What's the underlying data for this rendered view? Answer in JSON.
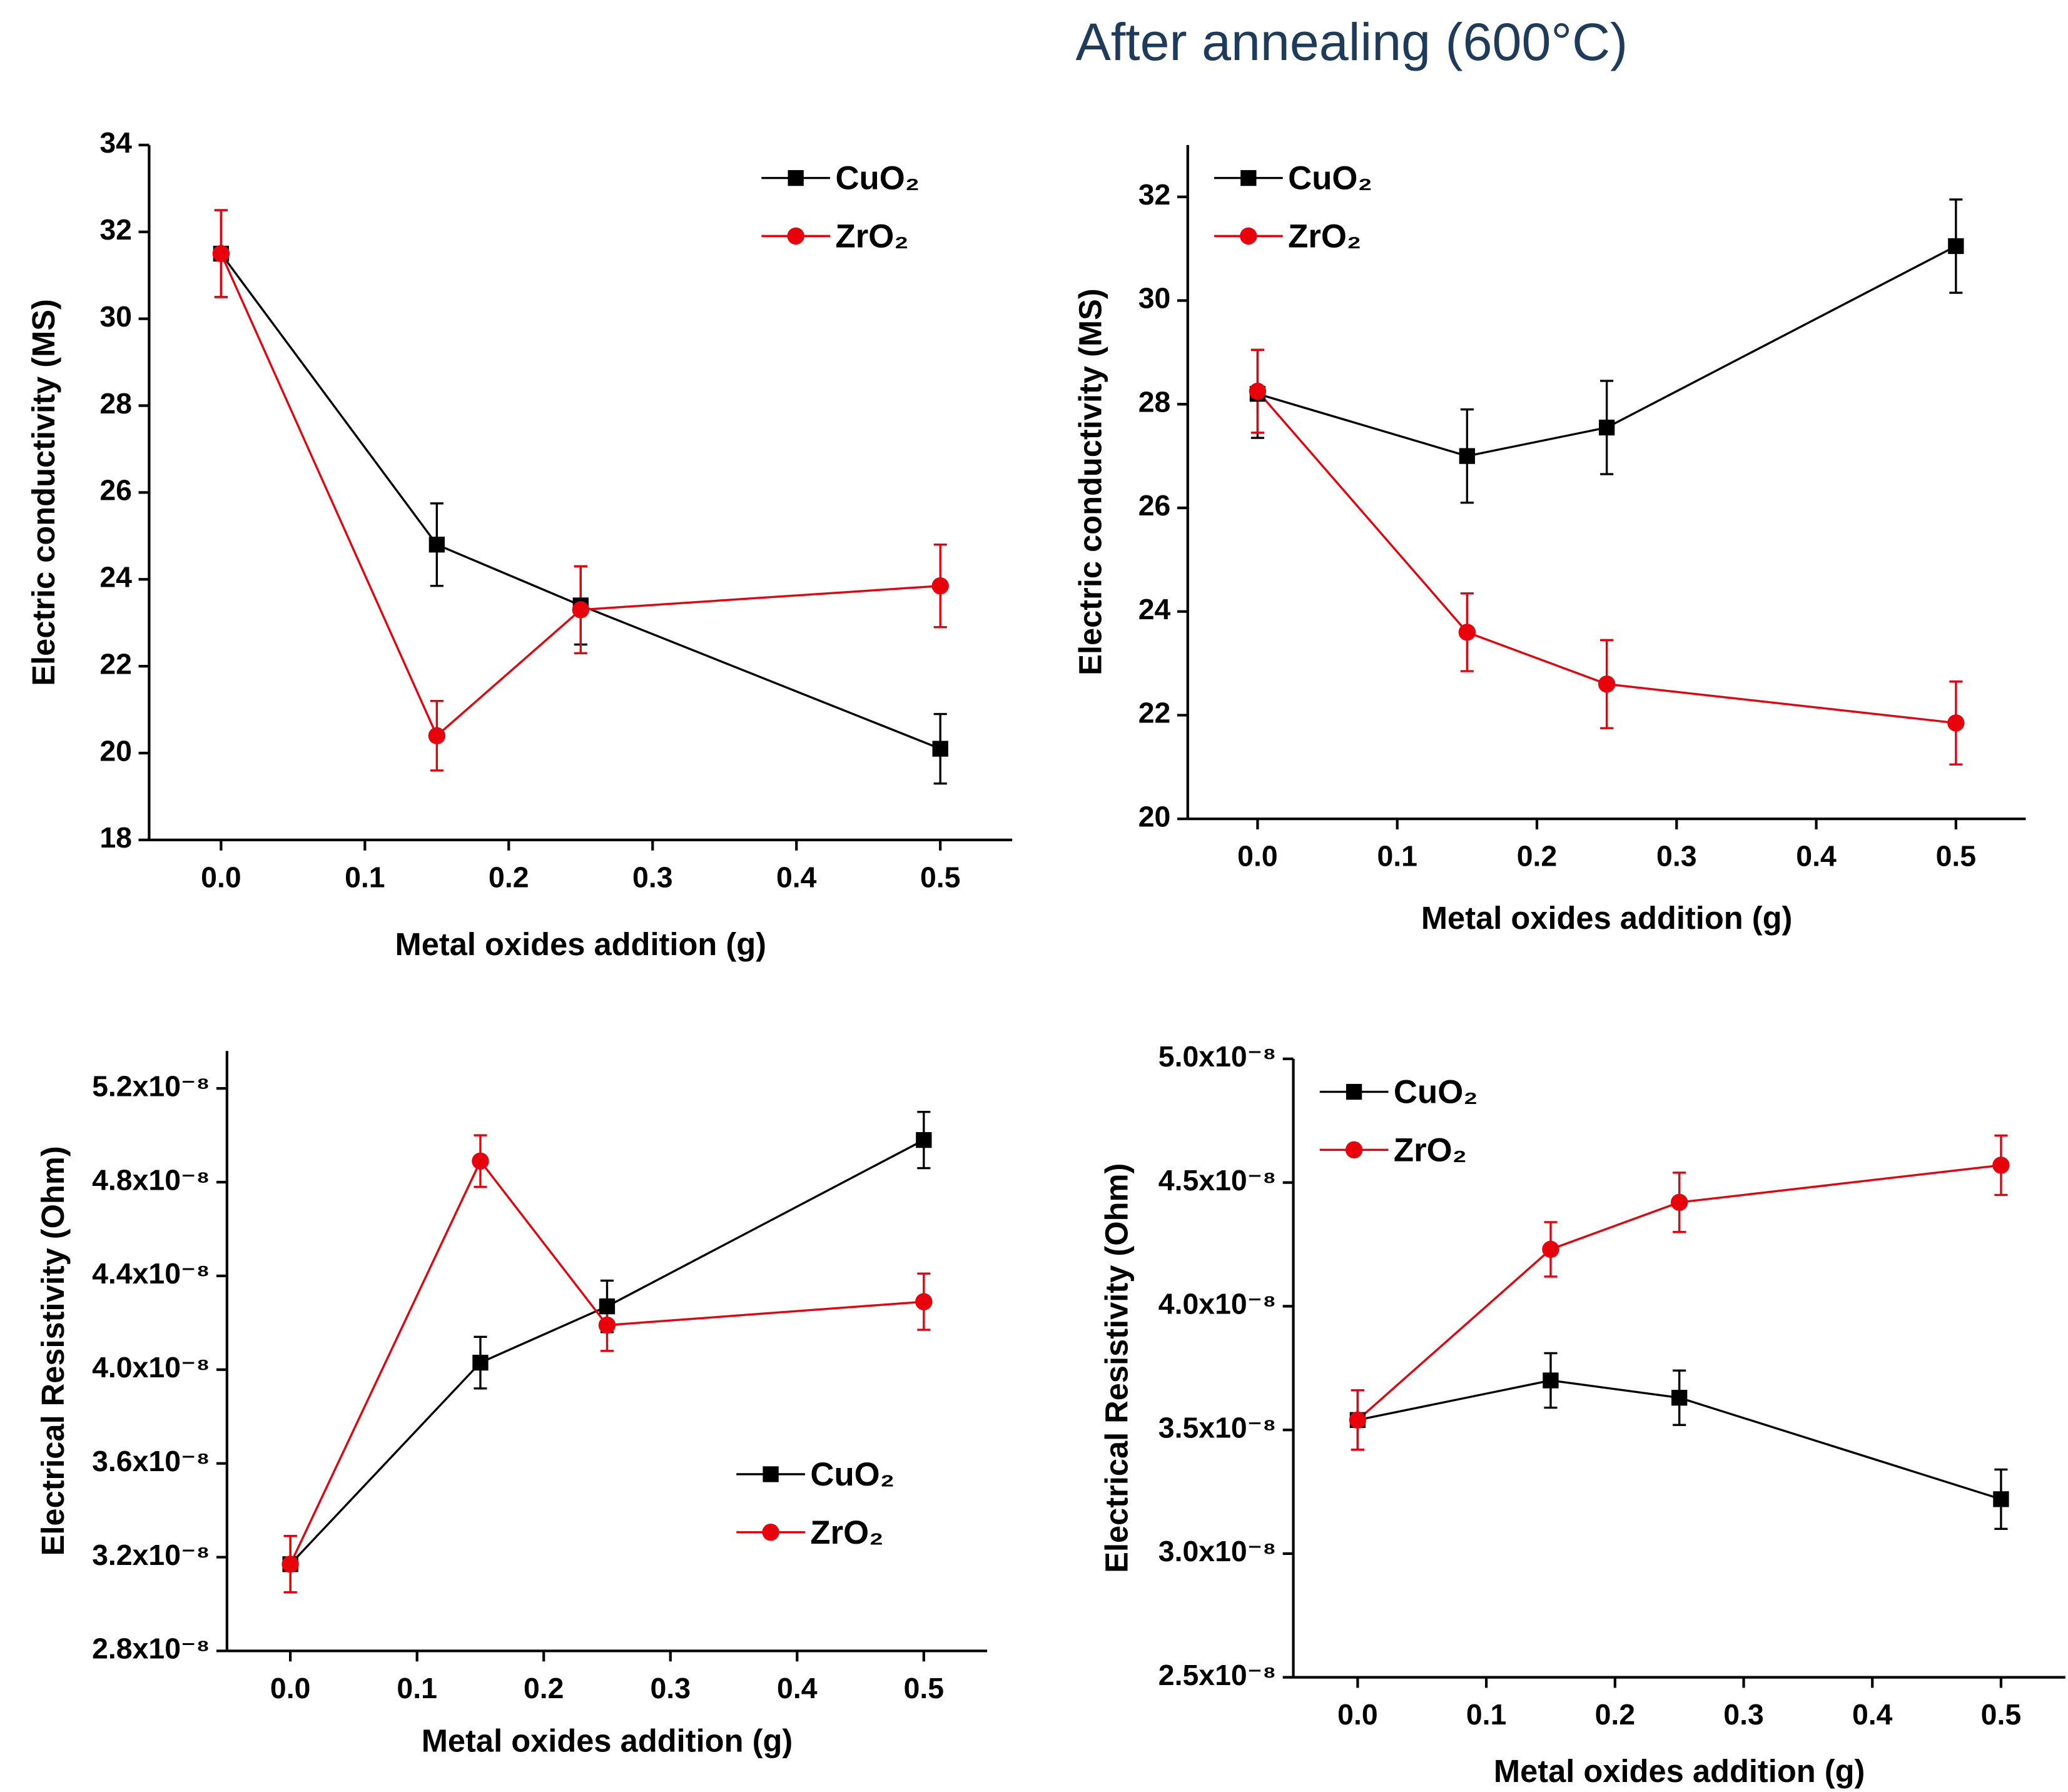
{
  "page_title": "After annealing (600°C)",
  "chart_data": [
    {
      "type": "line",
      "x_label": "Metal oxides addition (g)",
      "y_label": "Electric conductivity (MS)",
      "x": [
        0,
        0.15,
        0.25,
        0.5
      ],
      "xlim": [
        -0.05,
        0.55
      ],
      "xticks": [
        {
          "value": 0,
          "label": "0.0"
        },
        0.1,
        0.2,
        0.3,
        0.4,
        0.5
      ],
      "ylim": [
        18,
        34
      ],
      "yticks": [
        18,
        20,
        22,
        24,
        26,
        28,
        30,
        32,
        34
      ],
      "legend": "upper right",
      "series": [
        {
          "name": "CuO₂",
          "color": "#000000",
          "marker": "square",
          "values": [
            31.5,
            24.8,
            23.4,
            20.1
          ],
          "errors": [
            1.0,
            0.95,
            0.9,
            0.8
          ]
        },
        {
          "name": "ZrO₂",
          "color": "#e8000b",
          "marker": "circle",
          "values": [
            31.5,
            20.4,
            23.3,
            23.85
          ],
          "errors": [
            1.0,
            0.8,
            1.0,
            0.95
          ]
        }
      ]
    },
    {
      "type": "line",
      "x_label": "Metal oxides addition (g)",
      "y_label": "Electric conductivity (MS)",
      "x": [
        0,
        0.15,
        0.25,
        0.5
      ],
      "xlim": [
        -0.05,
        0.55
      ],
      "xticks": [
        {
          "value": 0,
          "label": "0.0"
        },
        0.1,
        0.2,
        0.3,
        0.4,
        0.5
      ],
      "ylim": [
        20,
        33
      ],
      "yticks": [
        20,
        22,
        24,
        26,
        28,
        30,
        32
      ],
      "legend": "upper left",
      "series": [
        {
          "name": "CuO₂",
          "color": "#000000",
          "marker": "square",
          "values": [
            28.2,
            27.0,
            27.55,
            31.05
          ],
          "errors": [
            0.85,
            0.9,
            0.9,
            0.9
          ]
        },
        {
          "name": "ZrO₂",
          "color": "#e8000b",
          "marker": "circle",
          "values": [
            28.25,
            23.6,
            22.6,
            21.85
          ],
          "errors": [
            0.8,
            0.75,
            0.85,
            0.8
          ]
        }
      ]
    },
    {
      "type": "line",
      "x_label": "Metal oxides addition (g)",
      "y_label": "Electrical Resistivity (Ohm)",
      "x": [
        0,
        0.15,
        0.25,
        0.5
      ],
      "xlim": [
        -0.05,
        0.55
      ],
      "xticks": [
        {
          "value": 0,
          "label": "0.0"
        },
        0.1,
        0.2,
        0.3,
        0.4,
        0.5
      ],
      "ylim": [
        2.8e-08,
        5.36e-08
      ],
      "yticks": [
        {
          "value": 2.8e-08,
          "label": "2.8x10⁻⁸"
        },
        {
          "value": 3.2e-08,
          "label": "3.2x10⁻⁸"
        },
        {
          "value": 3.6e-08,
          "label": "3.6x10⁻⁸"
        },
        {
          "value": 4e-08,
          "label": "4.0x10⁻⁸"
        },
        {
          "value": 4.4e-08,
          "label": "4.4x10⁻⁸"
        },
        {
          "value": 4.8e-08,
          "label": "4.8x10⁻⁸"
        },
        {
          "value": 5.2e-08,
          "label": "5.2x10⁻⁸"
        }
      ],
      "legend": "lower right",
      "series": [
        {
          "name": "CuO₂",
          "color": "#000000",
          "marker": "square",
          "values": [
            3.17e-08,
            4.03e-08,
            4.27e-08,
            4.98e-08
          ],
          "errors": [
            1.2e-09,
            1.1e-09,
            1.1e-09,
            1.2e-09
          ]
        },
        {
          "name": "ZrO₂",
          "color": "#e8000b",
          "marker": "circle",
          "values": [
            3.17e-08,
            4.89e-08,
            4.19e-08,
            4.29e-08
          ],
          "errors": [
            1.2e-09,
            1.1e-09,
            1.1e-09,
            1.2e-09
          ]
        }
      ]
    },
    {
      "type": "line",
      "x_label": "Metal oxides addition (g)",
      "y_label": "Electrical Resistivity (Ohm)",
      "x": [
        0,
        0.15,
        0.25,
        0.5
      ],
      "xlim": [
        -0.05,
        0.55
      ],
      "xticks": [
        {
          "value": 0,
          "label": "0.0"
        },
        0.1,
        0.2,
        0.3,
        0.4,
        0.5
      ],
      "ylim": [
        2.5e-08,
        5e-08
      ],
      "yticks": [
        {
          "value": 2.5e-08,
          "label": "2.5x10⁻⁸"
        },
        {
          "value": 3e-08,
          "label": "3.0x10⁻⁸"
        },
        {
          "value": 3.5e-08,
          "label": "3.5x10⁻⁸"
        },
        {
          "value": 4e-08,
          "label": "4.0x10⁻⁸"
        },
        {
          "value": 4.5e-08,
          "label": "4.5x10⁻⁸"
        },
        {
          "value": 5e-08,
          "label": "5.0x10⁻⁸"
        }
      ],
      "legend": "upper left",
      "series": [
        {
          "name": "CuO₂",
          "color": "#000000",
          "marker": "square",
          "values": [
            3.54e-08,
            3.7e-08,
            3.63e-08,
            3.22e-08
          ],
          "errors": [
            1.2e-09,
            1.1e-09,
            1.1e-09,
            1.2e-09
          ]
        },
        {
          "name": "ZrO₂",
          "color": "#e8000b",
          "marker": "circle",
          "values": [
            3.54e-08,
            4.23e-08,
            4.42e-08,
            4.57e-08
          ],
          "errors": [
            1.2e-09,
            1.1e-09,
            1.2e-09,
            1.2e-09
          ]
        }
      ]
    }
  ]
}
